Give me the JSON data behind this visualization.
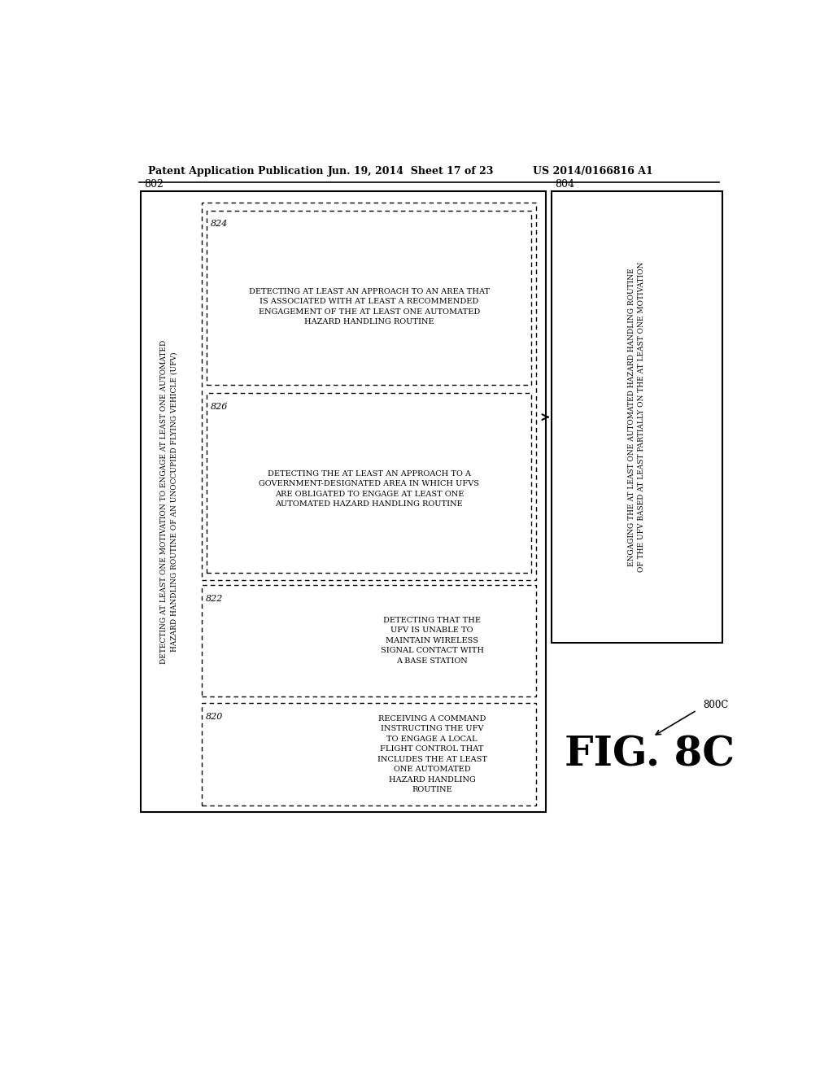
{
  "bg_color": "#ffffff",
  "header_left": "Patent Application Publication",
  "header_mid": "Jun. 19, 2014  Sheet 17 of 23",
  "header_right": "US 2014/0166816 A1",
  "fig_label": "FIG. 8C",
  "fig_ref": "800C",
  "outer_box_label": "802",
  "right_box_label": "804",
  "main_top_text": "DETECTING AT LEAST ONE MOTIVATION TO ENGAGE AT LEAST ONE AUTOMATED\nHAZARD HANDLING ROUTINE OF AN UNOCCUPIED FLYING VEHICLE (UFV)",
  "box820_label": "820",
  "box820_text": "RECEIVING A COMMAND\nINSTRUCTING THE UFV\nTO ENGAGE A LOCAL\nFLIGHT CONTROL THAT\nINCLUDES THE AT LEAST\nONE AUTOMATED\nHAZARD HANDLING\nROUTINE",
  "box822_label": "822",
  "box822_text": "DETECTING THAT THE\nUFV IS UNABLE TO\nMAINTAIN WIRELESS\nSIGNAL CONTACT WITH\nA BASE STATION",
  "box824_label": "824",
  "box824_text": "DETECTING AT LEAST AN APPROACH TO AN AREA THAT\nIS ASSOCIATED WITH AT LEAST A RECOMMENDED\nENGAGEMENT OF THE AT LEAST ONE AUTOMATED\nHAZARD HANDLING ROUTINE",
  "box826_label": "826",
  "box826_text": "DETECTING THE AT LEAST AN APPROACH TO A\nGOVERNMENT-DESIGNATED AREA IN WHICH UFVS\nARE OBLIGATED TO ENGAGE AT LEAST ONE\nAUTOMATED HAZARD HANDLING ROUTINE",
  "right_box_text": "ENGAGING THE AT LEAST ONE AUTOMATED HAZARD HANDLING ROUTINE\nOF THE UFV BASED AT LEAST PARTIALLY ON THE AT LEAST ONE MOTIVATION"
}
